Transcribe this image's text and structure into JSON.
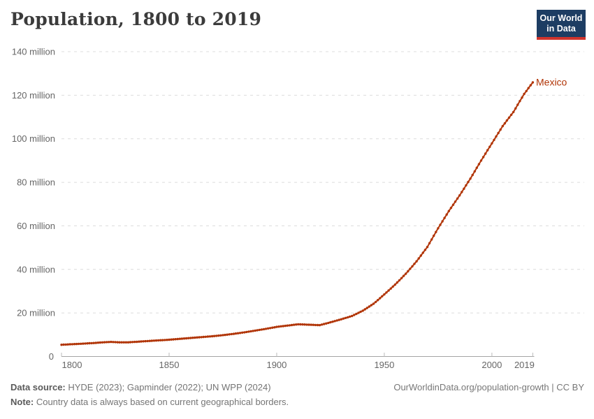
{
  "header": {
    "title": "Population, 1800 to 2019",
    "logo": {
      "line1": "Our World",
      "line2": "in Data"
    }
  },
  "chart_data": {
    "type": "line",
    "title": "Population, 1800 to 2019",
    "unit": "million people",
    "xlabel": "",
    "ylabel": "",
    "xlim": [
      1800,
      2019
    ],
    "ylim": [
      0,
      140000000
    ],
    "grid": "horizontal-dashed",
    "legend_position": "end-of-line-label",
    "x_ticks": [
      1800,
      1850,
      1900,
      1950,
      2000,
      2019
    ],
    "x_tick_labels": [
      "1800",
      "1850",
      "1900",
      "1950",
      "2000",
      "2019"
    ],
    "y_ticks_million": [
      0,
      20,
      40,
      60,
      80,
      100,
      120,
      140
    ],
    "y_tick_labels": [
      "0",
      "20 million",
      "40 million",
      "60 million",
      "80 million",
      "100 million",
      "120 million",
      "140 million"
    ],
    "series": [
      {
        "name": "Mexico",
        "color": "#b13507",
        "marker": "dot-per-year",
        "points_year_million": [
          [
            1800,
            5.4
          ],
          [
            1805,
            5.65
          ],
          [
            1810,
            5.9
          ],
          [
            1815,
            6.2
          ],
          [
            1820,
            6.55
          ],
          [
            1823,
            6.7
          ],
          [
            1827,
            6.5
          ],
          [
            1831,
            6.5
          ],
          [
            1835,
            6.75
          ],
          [
            1840,
            7.1
          ],
          [
            1845,
            7.4
          ],
          [
            1850,
            7.7
          ],
          [
            1855,
            8.1
          ],
          [
            1860,
            8.5
          ],
          [
            1865,
            8.9
          ],
          [
            1870,
            9.3
          ],
          [
            1875,
            9.8
          ],
          [
            1880,
            10.4
          ],
          [
            1885,
            11.1
          ],
          [
            1890,
            11.9
          ],
          [
            1895,
            12.7
          ],
          [
            1900,
            13.6
          ],
          [
            1905,
            14.2
          ],
          [
            1910,
            14.8
          ],
          [
            1915,
            14.6
          ],
          [
            1920,
            14.4
          ],
          [
            1925,
            15.7
          ],
          [
            1930,
            17.1
          ],
          [
            1935,
            18.6
          ],
          [
            1940,
            21.0
          ],
          [
            1945,
            24.2
          ],
          [
            1950,
            28.5
          ],
          [
            1955,
            33.0
          ],
          [
            1960,
            38.0
          ],
          [
            1965,
            43.7
          ],
          [
            1970,
            50.3
          ],
          [
            1975,
            58.9
          ],
          [
            1980,
            66.8
          ],
          [
            1985,
            74.0
          ],
          [
            1990,
            81.7
          ],
          [
            1995,
            90.0
          ],
          [
            2000,
            97.9
          ],
          [
            2005,
            105.8
          ],
          [
            2010,
            112.3
          ],
          [
            2015,
            120.6
          ],
          [
            2019,
            125.9
          ]
        ],
        "end_label": "Mexico",
        "end_value_million": 125.9
      }
    ]
  },
  "footer": {
    "source_label": "Data source:",
    "source_text": " HYDE (2023); Gapminder (2022); UN WPP (2024)",
    "note_label": "Note:",
    "note_text": " Country data is always based on current geographical borders.",
    "credit": "OurWorldinData.org/population-growth | CC BY"
  },
  "colors": {
    "background": "#ffffff",
    "line": "#b13507",
    "entity_label": "#b13507",
    "grid": "#dcdcdc",
    "axis": "#a5a5a5",
    "axis_tick": "#bbbbbb",
    "tick_label": "#666666",
    "title": "#3b3b3b",
    "logo_bg": "#1d3d63",
    "logo_accent": "#d0342c",
    "footer_text": "#757575",
    "footer_strong": "#5a5a5a",
    "credit": "#777777"
  }
}
